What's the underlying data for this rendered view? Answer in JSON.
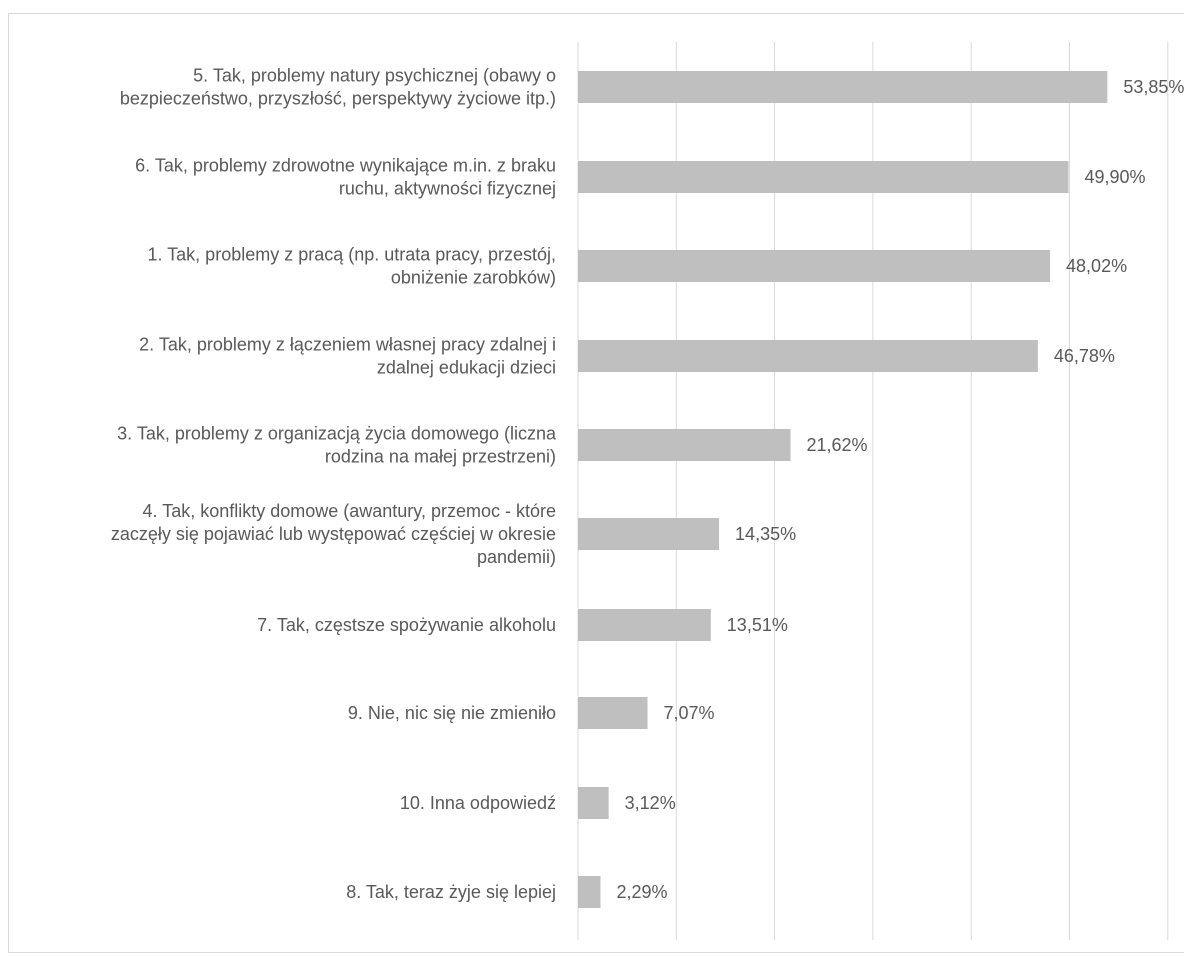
{
  "chart_data": {
    "type": "bar",
    "orientation": "horizontal",
    "title": "",
    "xlabel": "",
    "ylabel": "",
    "xlim": [
      0,
      60
    ],
    "grid": true,
    "legend": "none",
    "bar_color": "#bfbfbf",
    "categories": [
      [
        "5. Tak, problemy natury psychicznej (obawy o",
        "bezpieczeństwo, przyszłość, perspektywy życiowe itp.)"
      ],
      [
        "6. Tak, problemy zdrowotne wynikające m.in. z braku",
        "ruchu, aktywności fizycznej"
      ],
      [
        "1. Tak, problemy z pracą (np. utrata pracy, przestój,",
        "obniżenie zarobków)"
      ],
      [
        "2. Tak, problemy z łączeniem własnej pracy zdalnej i",
        "zdalnej edukacji dzieci"
      ],
      [
        "3. Tak, problemy z organizacją życia domowego (liczna",
        "rodzina na małej przestrzeni)"
      ],
      [
        "4. Tak, konflikty domowe (awantury, przemoc - które",
        "zaczęły się pojawiać lub występować częściej w okresie",
        "pandemii)"
      ],
      [
        "7. Tak, częstsze spożywanie alkoholu"
      ],
      [
        "9. Nie, nic się nie zmieniło"
      ],
      [
        "10. Inna odpowiedź"
      ],
      [
        "8. Tak, teraz żyje się lepiej"
      ]
    ],
    "values": [
      53.85,
      49.9,
      48.02,
      46.78,
      21.62,
      14.35,
      13.51,
      7.07,
      3.12,
      2.29
    ],
    "value_labels": [
      "53,85%",
      "49,90%",
      "48,02%",
      "46,78%",
      "21,62%",
      "14,35%",
      "13,51%",
      "7,07%",
      "3,12%",
      "2,29%"
    ]
  }
}
